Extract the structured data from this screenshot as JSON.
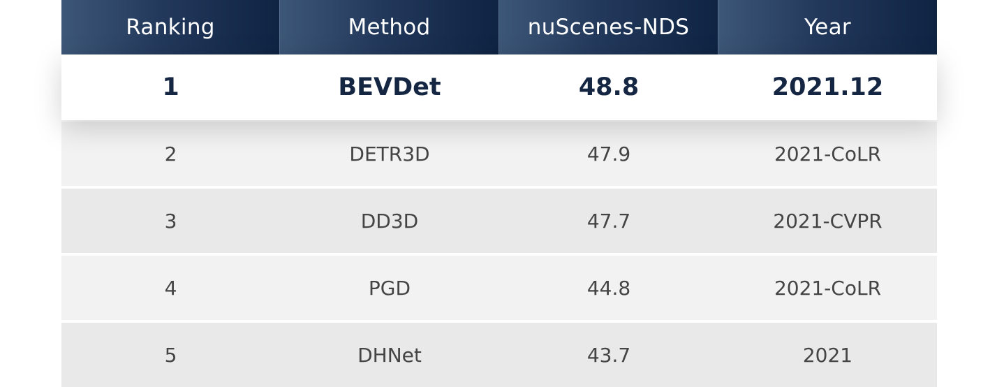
{
  "table": {
    "headers": [
      "Ranking",
      "Method",
      "nuScenes-NDS",
      "Year"
    ],
    "top_row": {
      "ranking": "1",
      "method": "BEVDet",
      "nds": "48.8",
      "year": "2021.12"
    },
    "rows": [
      {
        "ranking": "2",
        "method": "DETR3D",
        "nds": "47.9",
        "year": "2021-CoLR"
      },
      {
        "ranking": "3",
        "method": "DD3D",
        "nds": "47.7",
        "year": "2021-CVPR"
      },
      {
        "ranking": "4",
        "method": "PGD",
        "nds": "44.8",
        "year": "2021-CoLR"
      },
      {
        "ranking": "5",
        "method": "DHNet",
        "nds": "43.7",
        "year": "2021"
      }
    ]
  }
}
